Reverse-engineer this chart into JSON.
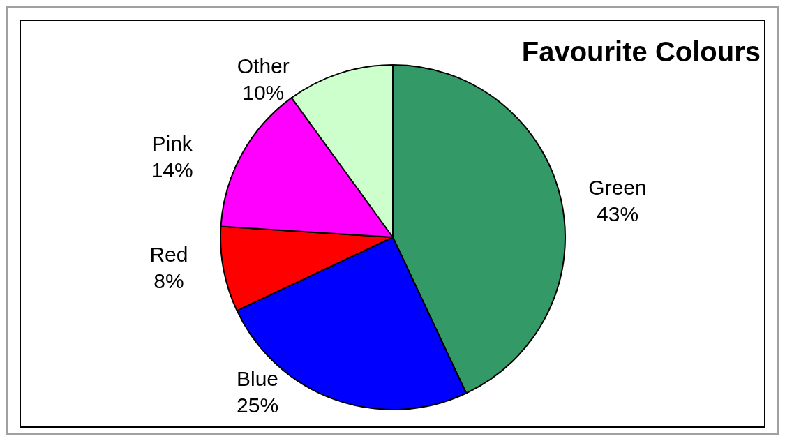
{
  "chart_data": {
    "type": "pie",
    "title": "Favourite Colours",
    "categories": [
      "Green",
      "Blue",
      "Red",
      "Pink",
      "Other"
    ],
    "values": [
      43,
      25,
      8,
      14,
      10
    ],
    "value_labels": [
      "43%",
      "25%",
      "8%",
      "14%",
      "10%"
    ],
    "colors": [
      "#339966",
      "#0000ff",
      "#ff0000",
      "#ff00ff",
      "#ccffcc"
    ],
    "legend": false
  }
}
